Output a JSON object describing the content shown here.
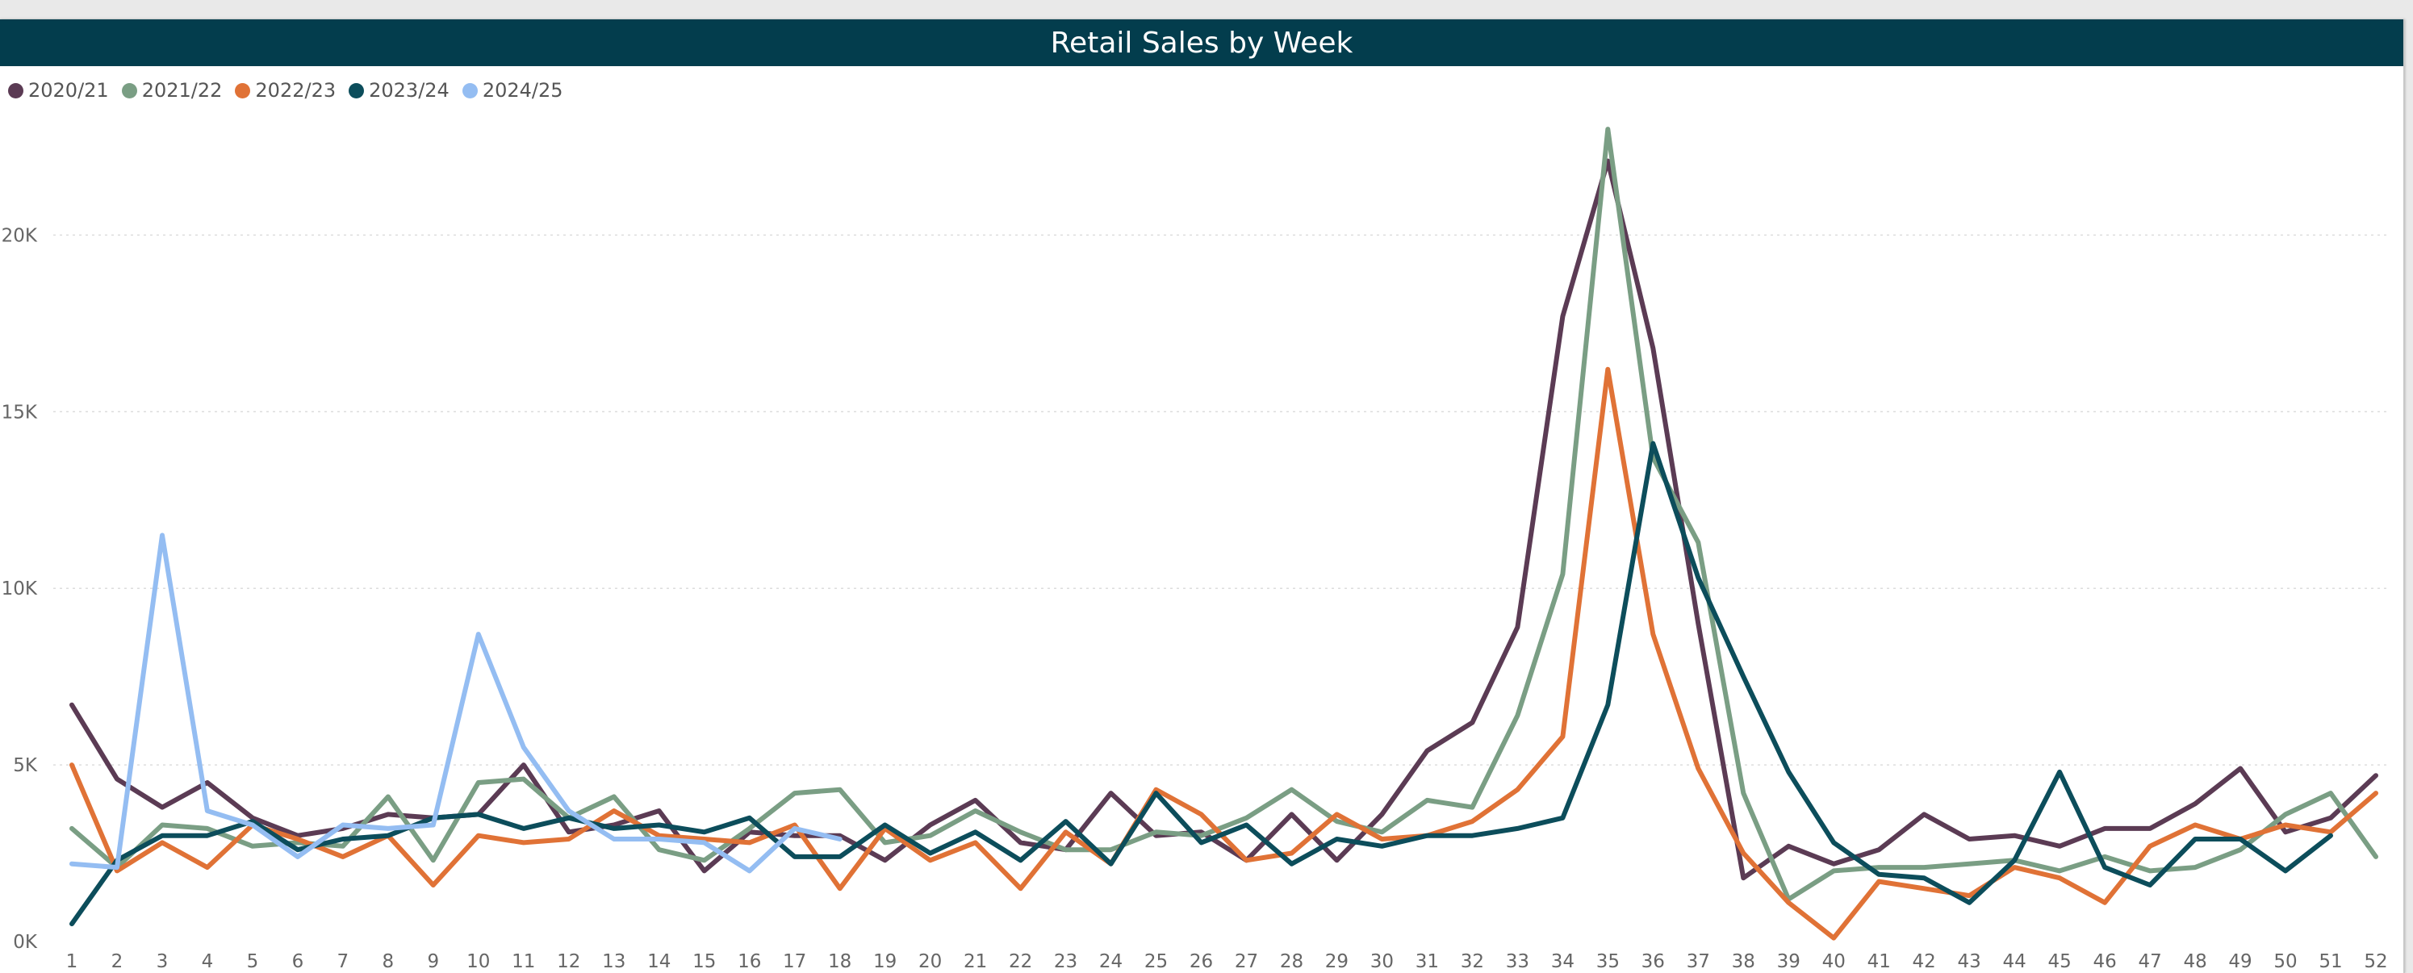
{
  "chart_data": {
    "type": "line",
    "title": "Retail Sales by Week",
    "xlabel": "",
    "ylabel": "",
    "legend_position": "top-left",
    "grid": true,
    "x": [
      1,
      2,
      3,
      4,
      5,
      6,
      7,
      8,
      9,
      10,
      11,
      12,
      13,
      14,
      15,
      16,
      17,
      18,
      19,
      20,
      21,
      22,
      23,
      24,
      25,
      26,
      27,
      28,
      29,
      30,
      31,
      32,
      33,
      34,
      35,
      36,
      37,
      38,
      39,
      40,
      41,
      42,
      43,
      44,
      45,
      46,
      47,
      48,
      49,
      50,
      51,
      52
    ],
    "ylim": [
      0,
      23000
    ],
    "yticks": [
      0,
      5000,
      10000,
      15000,
      20000
    ],
    "ytick_labels": [
      "0K",
      "5K",
      "10K",
      "15K",
      "20K"
    ],
    "series": [
      {
        "name": "2020/21",
        "color": "#5b3b54",
        "values": [
          6700,
          4600,
          3800,
          4500,
          3500,
          3000,
          3200,
          3600,
          3500,
          3600,
          5000,
          3100,
          3300,
          3700,
          2000,
          3100,
          3000,
          3000,
          2300,
          3300,
          4000,
          2800,
          2600,
          4200,
          3000,
          3100,
          2300,
          3600,
          2300,
          3600,
          5400,
          6200,
          8900,
          17700,
          22100,
          16800,
          9000,
          1800,
          2700,
          2200,
          2600,
          3600,
          2900,
          3000,
          2700,
          3200,
          3200,
          3900,
          4900,
          3100,
          3500,
          4700
        ]
      },
      {
        "name": "2021/22",
        "color": "#7a9e84",
        "values": [
          3200,
          2100,
          3300,
          3200,
          2700,
          2800,
          2700,
          4100,
          2300,
          4500,
          4600,
          3500,
          4100,
          2600,
          2300,
          3200,
          4200,
          4300,
          2800,
          3000,
          3700,
          3100,
          2600,
          2600,
          3100,
          3000,
          3500,
          4300,
          3400,
          3100,
          4000,
          3800,
          6400,
          10400,
          23000,
          13700,
          11300,
          4200,
          1200,
          2000,
          2100,
          2100,
          2200,
          2300,
          2000,
          2400,
          2000,
          2100,
          2600,
          3600,
          4200,
          2400
        ]
      },
      {
        "name": "2022/23",
        "color": "#e07236",
        "values": [
          5000,
          2000,
          2800,
          2100,
          3300,
          2900,
          2400,
          3000,
          1600,
          3000,
          2800,
          2900,
          3700,
          3000,
          2900,
          2800,
          3300,
          1500,
          3200,
          2300,
          2800,
          1500,
          3100,
          2200,
          4300,
          3600,
          2300,
          2500,
          3600,
          2900,
          3000,
          3400,
          4300,
          5800,
          16200,
          8700,
          4900,
          2500,
          1100,
          100,
          1700,
          1500,
          1300,
          2100,
          1800,
          1100,
          2700,
          3300,
          2900,
          3300,
          3100,
          4200
        ]
      },
      {
        "name": "2023/24",
        "color": "#0c4d5b",
        "values": [
          500,
          2300,
          3000,
          3000,
          3400,
          2600,
          2900,
          3000,
          3500,
          3600,
          3200,
          3500,
          3200,
          3300,
          3100,
          3500,
          2400,
          2400,
          3300,
          2500,
          3100,
          2300,
          3400,
          2200,
          4200,
          2800,
          3300,
          2200,
          2900,
          2700,
          3000,
          3000,
          3200,
          3500,
          6700,
          14100,
          10300,
          7500,
          4800,
          2800,
          1900,
          1800,
          1100,
          2300,
          4800,
          2100,
          1600,
          2900,
          2900,
          2000,
          3000,
          null
        ]
      },
      {
        "name": "2024/25",
        "color": "#94bdf2",
        "values": [
          2200,
          2100,
          11500,
          3700,
          3300,
          2400,
          3300,
          3200,
          3300,
          8700,
          5500,
          3700,
          2900,
          2900,
          2800,
          2000,
          3200,
          2900,
          null,
          null,
          null,
          null,
          null,
          null,
          null,
          null,
          null,
          null,
          null,
          null,
          null,
          null,
          null,
          null,
          null,
          null,
          null,
          null,
          null,
          null,
          null,
          null,
          null,
          null,
          null,
          null,
          null,
          null,
          null,
          null,
          null,
          null
        ]
      }
    ]
  }
}
